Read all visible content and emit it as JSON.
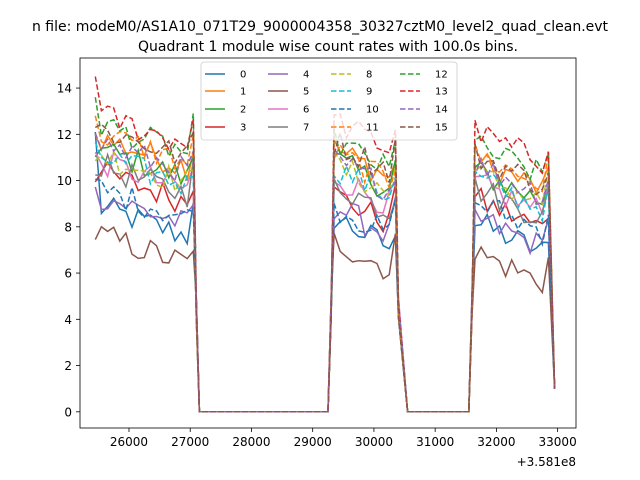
{
  "chart_data": {
    "type": "line",
    "suptitle": "n file: modeM0/AS1A10_071T29_9000004358_30327cztM0_level2_quad_clean.evt",
    "title": "Quadrant 1 module wise count rates with 100.0s bins.",
    "xlabel": "",
    "ylabel": "",
    "x_offset_label": "+3.581e8",
    "xlim": [
      25200,
      33300
    ],
    "ylim": [
      -0.7,
      15.3
    ],
    "xticks": [
      26000,
      27000,
      28000,
      29000,
      30000,
      31000,
      32000,
      33000
    ],
    "yticks": [
      0,
      2,
      4,
      6,
      8,
      10,
      12,
      14
    ],
    "grid": false,
    "legend_placement": "upper center, 4 columns",
    "segments": [
      {
        "start": 25450,
        "end": 27050
      },
      {
        "start": 29350,
        "end": 30350
      },
      {
        "start": 31650,
        "end": 32850
      }
    ],
    "zero_ranges": [
      [
        27150,
        29250
      ],
      [
        30550,
        31550
      ]
    ],
    "series": [
      {
        "name": "0",
        "color": "#1f77b4",
        "dash": "solid",
        "levels": [
          8.0,
          7.5,
          7.3
        ]
      },
      {
        "name": "1",
        "color": "#ff7f0e",
        "dash": "solid",
        "levels": [
          11.0,
          10.5,
          10.0
        ]
      },
      {
        "name": "2",
        "color": "#2ca02c",
        "dash": "solid",
        "levels": [
          10.5,
          10.0,
          9.5
        ]
      },
      {
        "name": "3",
        "color": "#d62728",
        "dash": "solid",
        "levels": [
          9.5,
          8.5,
          8.3
        ]
      },
      {
        "name": "4",
        "color": "#9467bd",
        "dash": "solid",
        "levels": [
          8.5,
          8.0,
          7.5
        ]
      },
      {
        "name": "5",
        "color": "#8c564b",
        "dash": "solid",
        "levels": [
          6.8,
          6.5,
          6.0
        ]
      },
      {
        "name": "6",
        "color": "#e377c2",
        "dash": "solid",
        "levels": [
          10.0,
          9.3,
          9.0
        ]
      },
      {
        "name": "7",
        "color": "#7f7f7f",
        "dash": "solid",
        "levels": [
          9.8,
          9.0,
          8.8
        ]
      },
      {
        "name": "8",
        "color": "#bcbd22",
        "dash": "dashed",
        "levels": [
          10.3,
          9.8,
          9.4
        ]
      },
      {
        "name": "9",
        "color": "#17becf",
        "dash": "dashed",
        "levels": [
          10.2,
          9.7,
          9.2
        ]
      },
      {
        "name": "10",
        "color": "#1f77b4",
        "dash": "dashed",
        "levels": [
          8.8,
          8.0,
          8.2
        ]
      },
      {
        "name": "11",
        "color": "#ff7f0e",
        "dash": "dashed",
        "levels": [
          11.2,
          10.3,
          10.2
        ]
      },
      {
        "name": "12",
        "color": "#2ca02c",
        "dash": "dashed",
        "levels": [
          11.6,
          10.8,
          10.6
        ]
      },
      {
        "name": "13",
        "color": "#d62728",
        "dash": "dashed",
        "levels": [
          12.0,
          11.7,
          11.2
        ]
      },
      {
        "name": "14",
        "color": "#9467bd",
        "dash": "dashed",
        "levels": [
          10.8,
          10.0,
          9.8
        ]
      },
      {
        "name": "15",
        "color": "#8c564b",
        "dash": "dashed",
        "levels": [
          11.4,
          10.8,
          10.2
        ]
      }
    ],
    "peaks": {
      "13": 14.5,
      "12": 13.6,
      "11": 12.8,
      "0": 12.1
    }
  }
}
